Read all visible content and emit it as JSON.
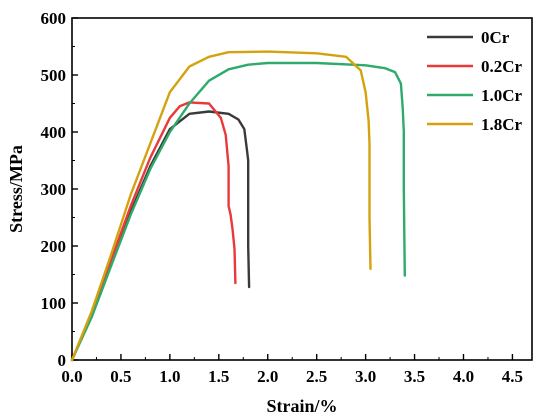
{
  "chart_data": {
    "type": "line",
    "xlabel": "Strain/%",
    "ylabel": "Stress/MPa",
    "xlim": [
      0,
      4.7
    ],
    "ylim": [
      0,
      600
    ],
    "xticks": [
      "0.0",
      "0.5",
      "1.0",
      "1.5",
      "2.0",
      "2.5",
      "3.0",
      "3.5",
      "4.0",
      "4.5"
    ],
    "yticks": [
      "0",
      "100",
      "200",
      "300",
      "400",
      "500",
      "600"
    ],
    "grid": false,
    "legend_position": "top-right",
    "series": [
      {
        "name": "0Cr",
        "color": "#3a3a3a",
        "x": [
          0,
          0.2,
          0.4,
          0.6,
          0.8,
          1.0,
          1.2,
          1.4,
          1.6,
          1.7,
          1.76,
          1.79,
          1.8,
          1.8,
          1.81
        ],
        "y": [
          0,
          80,
          170,
          260,
          340,
          405,
          432,
          436,
          432,
          422,
          405,
          365,
          350,
          200,
          128
        ]
      },
      {
        "name": "0.2Cr",
        "color": "#e83a3a",
        "x": [
          0,
          0.2,
          0.4,
          0.6,
          0.8,
          1.0,
          1.1,
          1.2,
          1.4,
          1.52,
          1.57,
          1.6,
          1.6,
          1.62,
          1.64,
          1.66,
          1.67
        ],
        "y": [
          0,
          80,
          175,
          270,
          355,
          425,
          445,
          452,
          450,
          425,
          395,
          340,
          270,
          255,
          230,
          195,
          135
        ]
      },
      {
        "name": "1.0Cr",
        "color": "#2eaa6a",
        "x": [
          0,
          0.2,
          0.4,
          0.6,
          0.8,
          1.0,
          1.2,
          1.4,
          1.6,
          1.8,
          2.0,
          2.5,
          3.0,
          3.2,
          3.3,
          3.36,
          3.38,
          3.39,
          3.39,
          3.4
        ],
        "y": [
          0,
          75,
          165,
          255,
          335,
          400,
          450,
          490,
          510,
          518,
          521,
          521,
          517,
          512,
          505,
          485,
          440,
          400,
          300,
          148
        ]
      },
      {
        "name": "1.8Cr",
        "color": "#d4a20f",
        "x": [
          0,
          0.2,
          0.4,
          0.6,
          0.8,
          1.0,
          1.2,
          1.4,
          1.6,
          2.0,
          2.5,
          2.8,
          2.95,
          3.0,
          3.03,
          3.04,
          3.04,
          3.05
        ],
        "y": [
          0,
          85,
          185,
          290,
          380,
          470,
          515,
          532,
          540,
          541,
          538,
          532,
          508,
          470,
          420,
          380,
          250,
          160
        ]
      }
    ]
  }
}
